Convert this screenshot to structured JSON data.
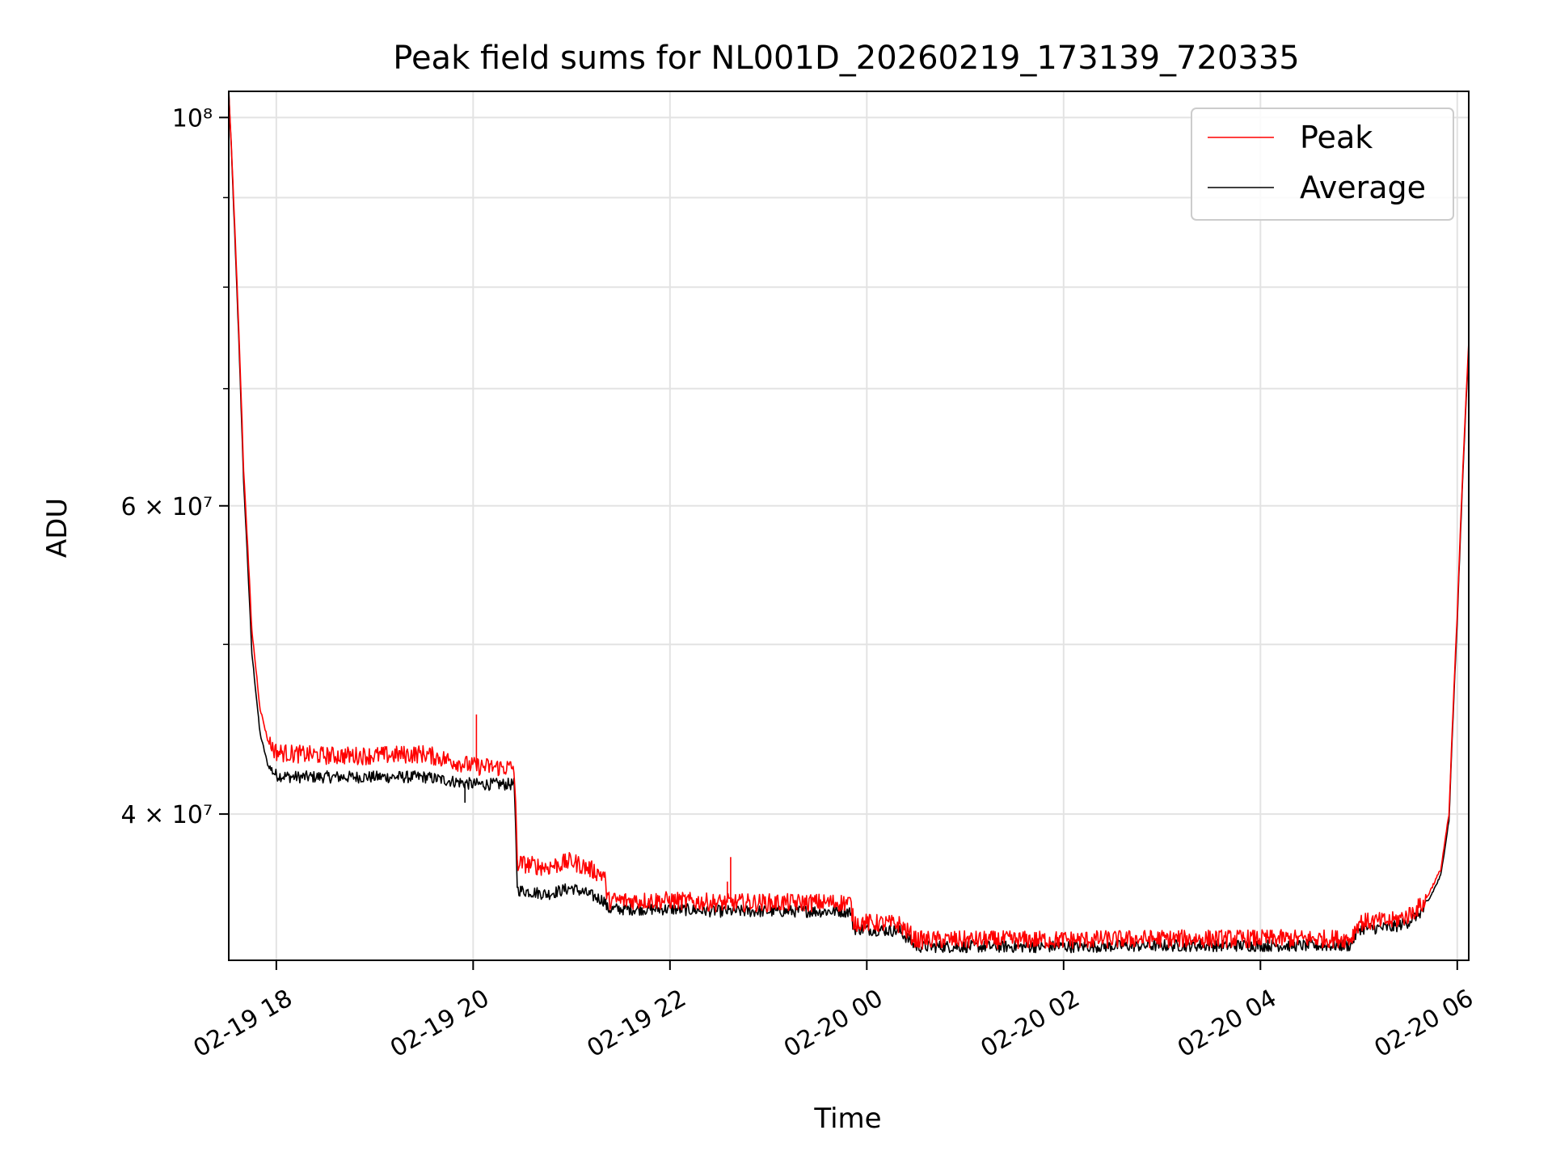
{
  "chart_data": {
    "type": "line",
    "title": "Peak field sums for NL001D_20260219_173139_720335",
    "xlabel": "Time",
    "ylabel": "ADU",
    "y_scale": "log",
    "ylim": [
      33000000,
      103500000
    ],
    "xlim": [
      "02-19 17:31",
      "02-20 06:07"
    ],
    "grid": true,
    "legend_position": "top-right",
    "x_ticks": [
      "02-19 18",
      "02-19 20",
      "02-19 22",
      "02-20 00",
      "02-20 02",
      "02-20 04",
      "02-20 06"
    ],
    "x_tick_times": [
      "02-19 18:00",
      "02-19 20:00",
      "02-19 22:00",
      "02-20 00:00",
      "02-20 02:00",
      "02-20 04:00",
      "02-20 06:00"
    ],
    "y_ticks": [
      {
        "value": 40000000,
        "label": "4 × 10⁷"
      },
      {
        "value": 60000000,
        "label": "6 × 10⁷"
      },
      {
        "value": 100000000,
        "label": "10⁸"
      }
    ],
    "y_minor_ticks": [
      50000000,
      70000000,
      80000000,
      90000000
    ],
    "series": [
      {
        "name": "Peak",
        "color": "#ff0000",
        "x": [
          "02-19 17:31",
          "02-19 17:35",
          "02-19 17:40",
          "02-19 17:45",
          "02-19 17:50",
          "02-19 17:55",
          "02-19 18:00",
          "02-19 18:10",
          "02-19 18:30",
          "02-19 19:00",
          "02-19 19:30",
          "02-19 20:00",
          "02-19 20:25",
          "02-19 20:27",
          "02-19 20:45",
          "02-19 21:00",
          "02-19 21:20",
          "02-19 21:22",
          "02-19 22:00",
          "02-19 22:30",
          "02-19 23:00",
          "02-19 23:50",
          "02-19 23:52",
          "02-20 00:20",
          "02-20 00:30",
          "02-20 01:00",
          "02-20 02:00",
          "02-20 03:00",
          "02-20 04:00",
          "02-20 04:55",
          "02-20 05:00",
          "02-20 05:20",
          "02-20 05:30",
          "02-20 05:40",
          "02-20 05:50",
          "02-20 05:55",
          "02-20 06:00",
          "02-20 06:07"
        ],
        "y": [
          103500000,
          85000000,
          63000000,
          51000000,
          46000000,
          44000000,
          43400000,
          43300000,
          43200000,
          43200000,
          43300000,
          42600000,
          42500000,
          37500000,
          37300000,
          37600000,
          36900000,
          35700000,
          35700000,
          35600000,
          35600000,
          35600000,
          34700000,
          34600000,
          33900000,
          33900000,
          33900000,
          33950000,
          33950000,
          33950000,
          34700000,
          34750000,
          35000000,
          35600000,
          37200000,
          40000000,
          52000000,
          74500000
        ]
      },
      {
        "name": "Average",
        "color": "#000000",
        "x": [
          "02-19 17:31",
          "02-19 17:35",
          "02-19 17:40",
          "02-19 17:45",
          "02-19 17:50",
          "02-19 17:55",
          "02-19 18:00",
          "02-19 18:10",
          "02-19 18:30",
          "02-19 19:00",
          "02-19 19:30",
          "02-19 20:00",
          "02-19 20:25",
          "02-19 20:27",
          "02-19 20:45",
          "02-19 21:00",
          "02-19 21:20",
          "02-19 21:22",
          "02-19 22:00",
          "02-19 22:30",
          "02-19 23:00",
          "02-19 23:50",
          "02-19 23:52",
          "02-20 00:20",
          "02-20 00:30",
          "02-20 01:00",
          "02-20 02:00",
          "02-20 03:00",
          "02-20 04:00",
          "02-20 04:55",
          "02-20 05:00",
          "02-20 05:20",
          "02-20 05:30",
          "02-20 05:40",
          "02-20 05:50",
          "02-20 05:55",
          "02-20 06:00",
          "02-20 06:07"
        ],
        "y": [
          103500000,
          84000000,
          62000000,
          49500000,
          44500000,
          42600000,
          42100000,
          42000000,
          42000000,
          42000000,
          42000000,
          41600000,
          41600000,
          36200000,
          36000000,
          36300000,
          35700000,
          35300000,
          35300000,
          35200000,
          35200000,
          35200000,
          34400000,
          34300000,
          33600000,
          33600000,
          33600000,
          33650000,
          33650000,
          33650000,
          34400000,
          34450000,
          34700000,
          35300000,
          36900000,
          39700000,
          51500000,
          74000000
        ]
      }
    ],
    "annotations": [
      {
        "series": "Peak",
        "x": "02-19 20:02",
        "y": 45600000,
        "kind": "spike"
      },
      {
        "series": "Peak",
        "x": "02-19 22:35",
        "y": 36600000,
        "kind": "spike"
      },
      {
        "series": "Peak",
        "x": "02-19 22:37",
        "y": 37800000,
        "kind": "spike"
      },
      {
        "series": "Average",
        "x": "02-19 19:55",
        "y": 40600000,
        "kind": "dip"
      }
    ]
  }
}
